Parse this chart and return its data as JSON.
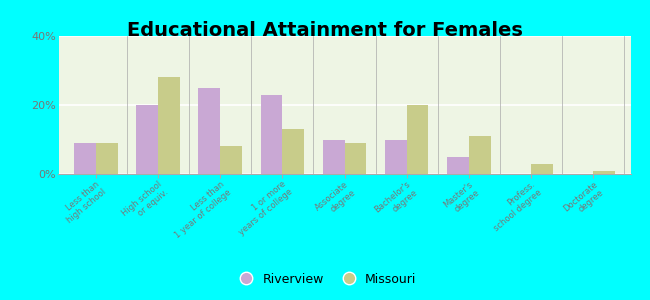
{
  "title": "Educational Attainment for Females",
  "categories": [
    "Less than\nhigh school",
    "High school\nor equiv.",
    "Less than\n1 year of college",
    "1 or more\nyears of college",
    "Associate\ndegree",
    "Bachelor's\ndegree",
    "Master's\ndegree",
    "Profess.\nschool degree",
    "Doctorate\ndegree"
  ],
  "riverview": [
    9.0,
    20.0,
    25.0,
    23.0,
    10.0,
    10.0,
    5.0,
    0.0,
    0.0
  ],
  "missouri": [
    9.0,
    28.0,
    8.0,
    13.0,
    9.0,
    20.0,
    11.0,
    3.0,
    1.0
  ],
  "riverview_color": "#c9a8d4",
  "missouri_color": "#c8cc8a",
  "ylim": [
    0,
    40
  ],
  "yticks": [
    0,
    20,
    40
  ],
  "ytick_labels": [
    "0%",
    "20%",
    "40%"
  ],
  "background_color": "#eef5e4",
  "outer_background": "#00ffff",
  "title_fontsize": 14,
  "bar_width": 0.35,
  "legend_riverview": "Riverview",
  "legend_missouri": "Missouri"
}
